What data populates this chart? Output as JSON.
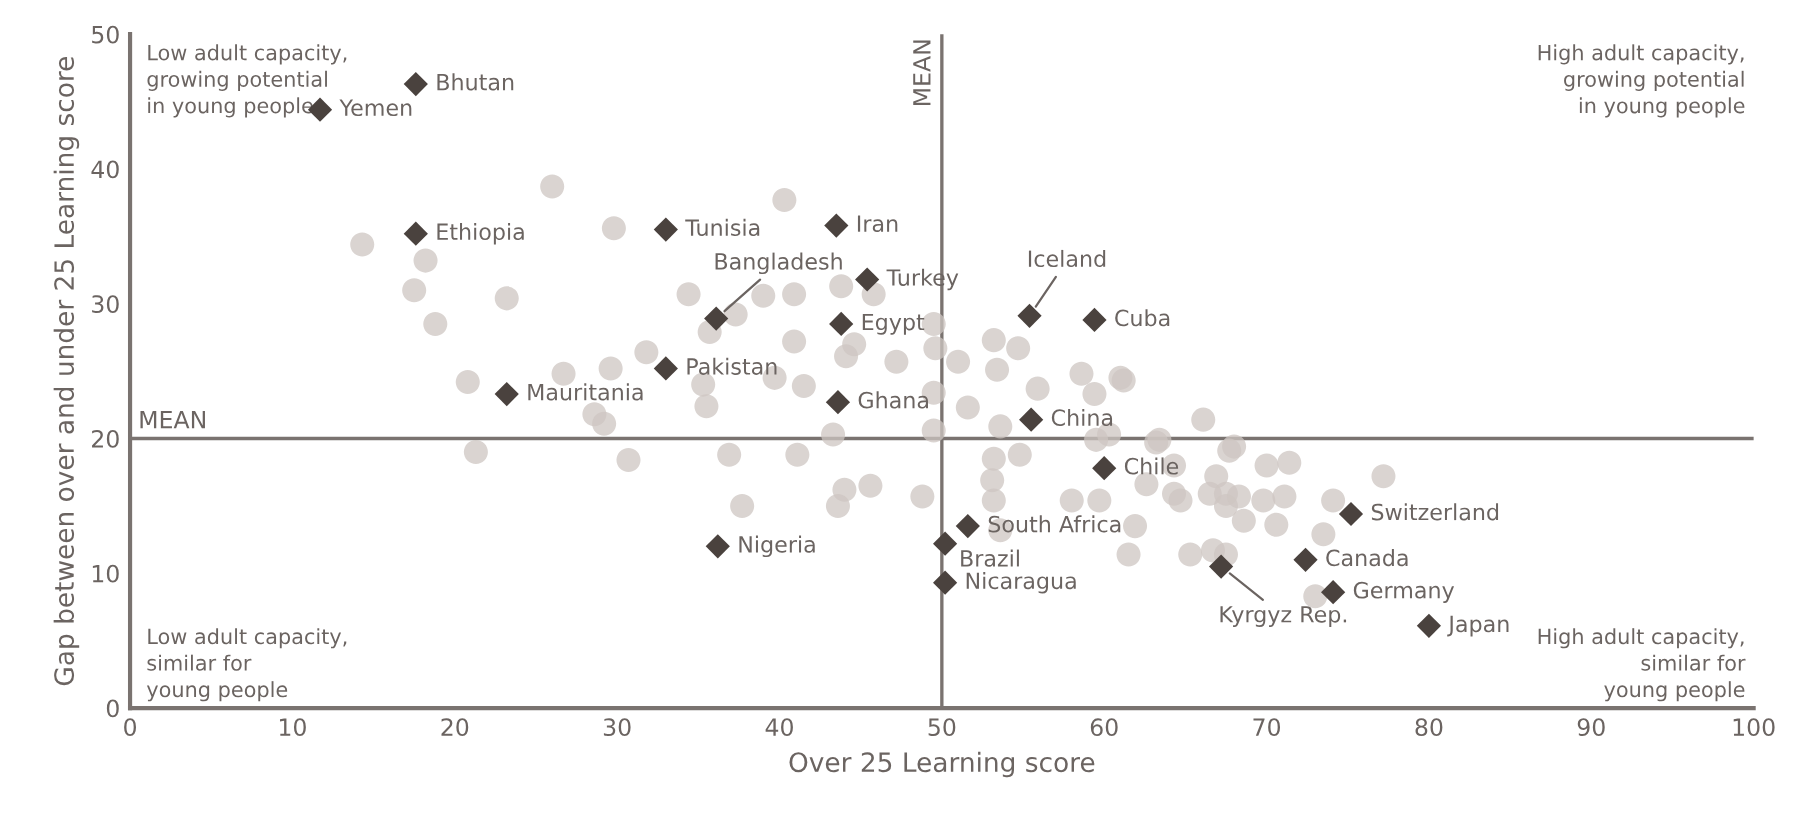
{
  "chart_data": {
    "type": "scatter",
    "xlabel": "Over 25 Learning score",
    "ylabel": "Gap between over and under 25 Learning score",
    "xlim": [
      0,
      100
    ],
    "xticks": [
      0,
      10,
      20,
      30,
      40,
      50,
      60,
      70,
      80,
      90,
      100
    ],
    "ylim": [
      0,
      50
    ],
    "yticks": [
      0,
      10,
      20,
      30,
      40,
      50
    ],
    "ref_lines": [
      {
        "axis": "x",
        "value": 50,
        "label": "MEAN",
        "color": "#7a7370"
      },
      {
        "axis": "y",
        "value": 20,
        "label": "MEAN",
        "color": "#7a7370"
      }
    ],
    "series": [
      {
        "marker": "circle",
        "color": "#cdc6c1",
        "x": [
          14.3,
          18.2,
          17.5,
          18.8,
          23.2,
          26.0,
          29.8,
          34.4,
          31.8,
          35.7,
          20.8,
          26.7,
          29.6,
          35.3,
          21.3,
          30.7,
          28.6,
          29.2,
          35.5,
          40.3,
          37.3,
          39.0,
          40.9,
          43.8,
          45.8,
          40.9,
          44.1,
          44.6,
          47.2,
          49.5,
          49.6,
          51.0,
          53.2,
          54.7,
          53.4,
          39.7,
          41.5,
          49.5,
          51.6,
          53.6,
          49.5,
          43.3,
          55.9,
          58.6,
          59.4,
          61.0,
          60.3,
          59.5,
          63.2,
          66.1,
          36.9,
          41.1,
          53.2,
          54.8,
          53.1,
          53.2,
          44.0,
          45.6,
          43.6,
          48.8,
          37.7,
          58.0,
          59.7,
          61.9,
          61.5,
          53.6,
          68.0,
          70.0,
          64.3,
          66.5,
          67.5,
          61.2,
          63.4,
          67.7,
          71.4,
          64.3,
          62.6,
          66.9,
          67.5,
          64.7,
          68.3,
          69.8,
          71.1,
          74.1,
          77.2,
          68.6,
          70.6,
          73.5,
          65.3,
          66.7,
          67.5,
          73.0
        ],
        "values": [
          34.4,
          33.2,
          31.0,
          28.5,
          30.4,
          38.7,
          35.6,
          30.7,
          26.4,
          27.9,
          24.2,
          24.8,
          25.2,
          24.0,
          19.0,
          18.4,
          21.8,
          21.1,
          22.4,
          37.7,
          29.2,
          30.6,
          30.7,
          31.3,
          30.7,
          27.2,
          26.1,
          27.0,
          25.7,
          28.5,
          26.7,
          25.7,
          27.3,
          26.7,
          25.1,
          24.5,
          23.9,
          23.4,
          22.3,
          20.9,
          20.6,
          20.3,
          23.7,
          24.8,
          23.3,
          24.5,
          20.3,
          19.9,
          19.7,
          21.4,
          18.8,
          18.8,
          18.5,
          18.8,
          16.9,
          15.4,
          16.2,
          16.5,
          15.0,
          15.7,
          15.0,
          15.4,
          15.4,
          13.5,
          11.4,
          13.2,
          19.4,
          18.0,
          15.9,
          15.9,
          15.0,
          24.3,
          19.9,
          19.1,
          18.2,
          18.0,
          16.6,
          17.2,
          15.9,
          15.4,
          15.7,
          15.4,
          15.7,
          15.4,
          17.2,
          13.9,
          13.6,
          12.9,
          11.4,
          11.7,
          11.4,
          8.3
        ]
      },
      {
        "marker": "diamond",
        "color": "#4a423e",
        "x": [
          11.7,
          17.6,
          17.6,
          33.0,
          43.5,
          36.1,
          45.4,
          43.8,
          33.0,
          23.2,
          43.6,
          55.4,
          59.4,
          55.5,
          60.0,
          36.2,
          51.6,
          50.2,
          50.2,
          75.2,
          72.4,
          67.2,
          74.1,
          80.0
        ],
        "values": [
          44.4,
          46.3,
          35.2,
          35.5,
          35.8,
          28.9,
          31.8,
          28.5,
          25.2,
          23.3,
          22.7,
          29.1,
          28.8,
          21.4,
          17.8,
          12.0,
          13.5,
          12.2,
          9.3,
          14.4,
          11.0,
          10.5,
          8.6,
          6.1
        ]
      }
    ],
    "annotations": [
      {
        "text": "Yemen",
        "x": 11.7,
        "y": 44.4
      },
      {
        "text": "Bhutan",
        "x": 17.6,
        "y": 46.3
      },
      {
        "text": "Ethiopia",
        "x": 17.6,
        "y": 35.2
      },
      {
        "text": "Tunisia",
        "x": 33.0,
        "y": 35.5
      },
      {
        "text": "Iran",
        "x": 43.5,
        "y": 35.8
      },
      {
        "text": "Bangladesh",
        "x": 36.1,
        "y": 28.9
      },
      {
        "text": "Turkey",
        "x": 45.4,
        "y": 31.8
      },
      {
        "text": "Egypt",
        "x": 43.8,
        "y": 28.5
      },
      {
        "text": "Pakistan",
        "x": 33.0,
        "y": 25.2
      },
      {
        "text": "Mauritania",
        "x": 23.2,
        "y": 23.3
      },
      {
        "text": "Ghana",
        "x": 43.6,
        "y": 22.7
      },
      {
        "text": "Iceland",
        "x": 55.4,
        "y": 29.1
      },
      {
        "text": "Cuba",
        "x": 59.4,
        "y": 28.8
      },
      {
        "text": "China",
        "x": 55.5,
        "y": 21.4
      },
      {
        "text": "Chile",
        "x": 60.0,
        "y": 17.8
      },
      {
        "text": "Nigeria",
        "x": 36.2,
        "y": 12.0
      },
      {
        "text": "South Africa",
        "x": 51.6,
        "y": 13.5
      },
      {
        "text": "Brazil",
        "x": 50.2,
        "y": 12.2
      },
      {
        "text": "Nicaragua",
        "x": 50.2,
        "y": 9.3
      },
      {
        "text": "Switzerland",
        "x": 75.2,
        "y": 14.4
      },
      {
        "text": "Canada",
        "x": 72.4,
        "y": 11.0
      },
      {
        "text": "Kyrgyz Rep.",
        "x": 67.2,
        "y": 10.5
      },
      {
        "text": "Germany",
        "x": 74.1,
        "y": 8.6
      },
      {
        "text": "Japan",
        "x": 80.0,
        "y": 6.1
      },
      "Low adult capacity,\ngrowing potential\nin young people",
      "High adult capacity,\ngrowing potential\nin young people",
      "Low adult capacity,\nsimilar for\nyoung people",
      "High adult capacity,\nsimilar for\nyoung people"
    ]
  }
}
